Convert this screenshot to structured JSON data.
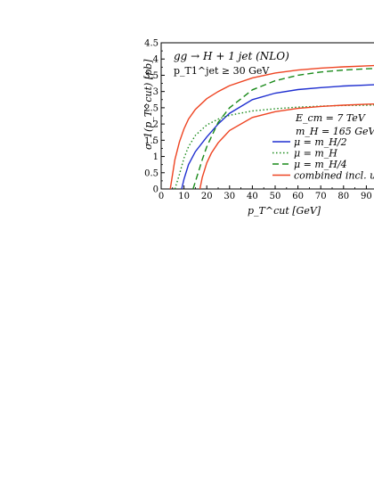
{
  "chart_data": {
    "type": "line",
    "annotation": {
      "process": "gg → H + 1 jet (NLO)",
      "cut": "p_T1^jet ≥ 30 GeV",
      "ecm": "E_cm = 7 TeV",
      "mh": "m_H = 165 GeV"
    },
    "xlabel": "p_T^cut [GeV]",
    "ylabel": "σ_1(p_T^cut) [pb]",
    "xlim": [
      0,
      98
    ],
    "ylim": [
      0,
      4.5
    ],
    "x_ticks": [
      "0",
      "10",
      "20",
      "30",
      "40",
      "50",
      "60",
      "70",
      "80",
      "90"
    ],
    "y_ticks": [
      "0",
      "0.5",
      "1",
      "1.5",
      "2",
      "2.5",
      "3",
      "3.5",
      "4",
      "4.5"
    ],
    "grid": false,
    "legend_position": "right-middle",
    "series": [
      {
        "name": "μ = m_H/2",
        "style": "solid",
        "color": "#1f2fd0",
        "x": [
          9,
          10,
          12,
          15,
          20,
          25,
          30,
          40,
          50,
          60,
          70,
          80,
          90,
          98
        ],
        "y": [
          0,
          0.3,
          0.75,
          1.15,
          1.6,
          2.0,
          2.33,
          2.75,
          2.95,
          3.06,
          3.12,
          3.17,
          3.2,
          3.22
        ]
      },
      {
        "name": "μ = m_H",
        "style": "dotted",
        "color": "#1a8a1a",
        "x": [
          6,
          8,
          10,
          12,
          15,
          20,
          25,
          30,
          40,
          50,
          60,
          70,
          80,
          90,
          98
        ],
        "y": [
          0,
          0.45,
          0.95,
          1.3,
          1.65,
          1.97,
          2.15,
          2.27,
          2.4,
          2.47,
          2.52,
          2.55,
          2.57,
          2.58,
          2.59
        ]
      },
      {
        "name": "μ = m_H/4",
        "style": "dashed",
        "color": "#1a8a1a",
        "x": [
          14,
          16,
          18,
          20,
          25,
          30,
          40,
          50,
          60,
          70,
          80,
          90,
          98
        ],
        "y": [
          0,
          0.45,
          0.9,
          1.3,
          2.05,
          2.5,
          3.05,
          3.33,
          3.5,
          3.6,
          3.66,
          3.7,
          3.72
        ]
      },
      {
        "name": "combined incl. unc.",
        "style": "solid",
        "color": "#ee4422",
        "x": [
          4,
          6,
          8,
          10,
          12,
          15,
          20,
          25,
          30,
          40,
          50,
          60,
          70,
          80,
          90,
          98
        ],
        "y": [
          0,
          0.9,
          1.45,
          1.85,
          2.15,
          2.45,
          2.78,
          3.0,
          3.18,
          3.42,
          3.57,
          3.66,
          3.72,
          3.76,
          3.79,
          3.81
        ]
      },
      {
        "name": "",
        "style": "solid",
        "color": "#ee4422",
        "x": [
          17,
          18,
          20,
          22,
          25,
          30,
          40,
          50,
          60,
          70,
          80,
          90,
          98
        ],
        "y": [
          0,
          0.35,
          0.8,
          1.1,
          1.42,
          1.8,
          2.2,
          2.38,
          2.48,
          2.54,
          2.58,
          2.61,
          2.62
        ]
      }
    ]
  }
}
